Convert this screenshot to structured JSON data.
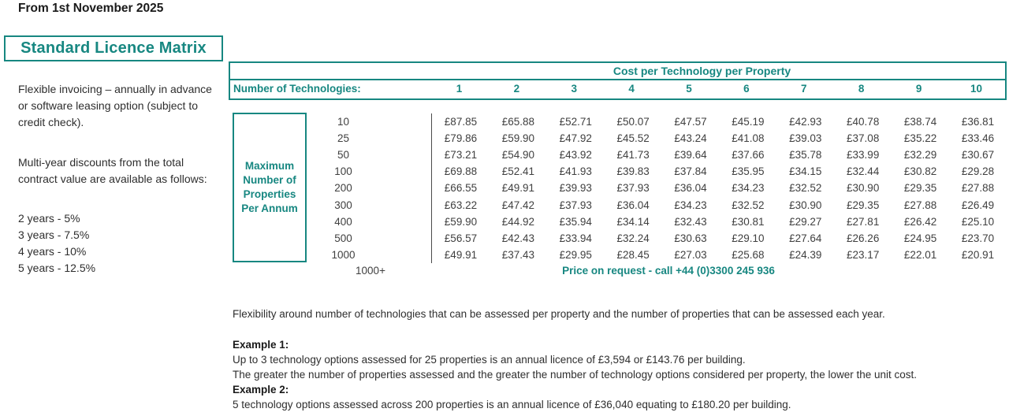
{
  "header": {
    "effective_date": "From 1st November 2025",
    "title": "Standard Licence Matrix"
  },
  "sidebar": {
    "invoicing_note": "Flexible invoicing – annually in advance or software leasing option (subject to credit check).",
    "discount_intro": "Multi-year discounts from the total contract value are available as follows:",
    "discounts": [
      "2 years - 5%",
      "3 years - 7.5%",
      "4 years - 10%",
      "5 years - 12.5%"
    ]
  },
  "matrix": {
    "column_group_title": "Cost per Technology per Property",
    "row_header_label": "Number of Technologies:",
    "technology_counts": [
      "1",
      "2",
      "3",
      "4",
      "5",
      "6",
      "7",
      "8",
      "9",
      "10"
    ],
    "row_group_label_lines": [
      "Maximum",
      "Number of",
      "Properties",
      "Per Annum"
    ],
    "rows": [
      {
        "properties": "10",
        "prices": [
          "£87.85",
          "£65.88",
          "£52.71",
          "£50.07",
          "£47.57",
          "£45.19",
          "£42.93",
          "£40.78",
          "£38.74",
          "£36.81"
        ]
      },
      {
        "properties": "25",
        "prices": [
          "£79.86",
          "£59.90",
          "£47.92",
          "£45.52",
          "£43.24",
          "£41.08",
          "£39.03",
          "£37.08",
          "£35.22",
          "£33.46"
        ]
      },
      {
        "properties": "50",
        "prices": [
          "£73.21",
          "£54.90",
          "£43.92",
          "£41.73",
          "£39.64",
          "£37.66",
          "£35.78",
          "£33.99",
          "£32.29",
          "£30.67"
        ]
      },
      {
        "properties": "100",
        "prices": [
          "£69.88",
          "£52.41",
          "£41.93",
          "£39.83",
          "£37.84",
          "£35.95",
          "£34.15",
          "£32.44",
          "£30.82",
          "£29.28"
        ]
      },
      {
        "properties": "200",
        "prices": [
          "£66.55",
          "£49.91",
          "£39.93",
          "£37.93",
          "£36.04",
          "£34.23",
          "£32.52",
          "£30.90",
          "£29.35",
          "£27.88"
        ]
      },
      {
        "properties": "300",
        "prices": [
          "£63.22",
          "£47.42",
          "£37.93",
          "£36.04",
          "£34.23",
          "£32.52",
          "£30.90",
          "£29.35",
          "£27.88",
          "£26.49"
        ]
      },
      {
        "properties": "400",
        "prices": [
          "£59.90",
          "£44.92",
          "£35.94",
          "£34.14",
          "£32.43",
          "£30.81",
          "£29.27",
          "£27.81",
          "£26.42",
          "£25.10"
        ]
      },
      {
        "properties": "500",
        "prices": [
          "£56.57",
          "£42.43",
          "£33.94",
          "£32.24",
          "£30.63",
          "£29.10",
          "£27.64",
          "£26.26",
          "£24.95",
          "£23.70"
        ]
      },
      {
        "properties": "1000",
        "prices": [
          "£49.91",
          "£37.43",
          "£29.95",
          "£28.45",
          "£27.03",
          "£25.68",
          "£24.39",
          "£23.17",
          "£22.01",
          "£20.91"
        ]
      }
    ],
    "overflow_row": {
      "properties": "1000+",
      "note": "Price on request - call +44 (0)3300 245 936"
    }
  },
  "footer": {
    "flexibility_note": "Flexibility around number of technologies that can be assessed per property and the number of properties that can be assessed each year.",
    "example1_label": "Example 1:",
    "example1_line1": "Up to 3 technology options assessed for 25 properties is an annual licence of £3,594 or £143.76 per building.",
    "example1_line2": "The greater the number of properties assessed and the greater the number of technology options considered per property, the lower the unit cost.",
    "example2_label": "Example 2:",
    "example2_line1": "5 technology options assessed across 200 properties is an annual licence of £36,040 equating to £180.20 per building."
  },
  "colors": {
    "accent_teal": "#178781",
    "body_text": "#404040",
    "heading_text": "#1a1a1a"
  }
}
